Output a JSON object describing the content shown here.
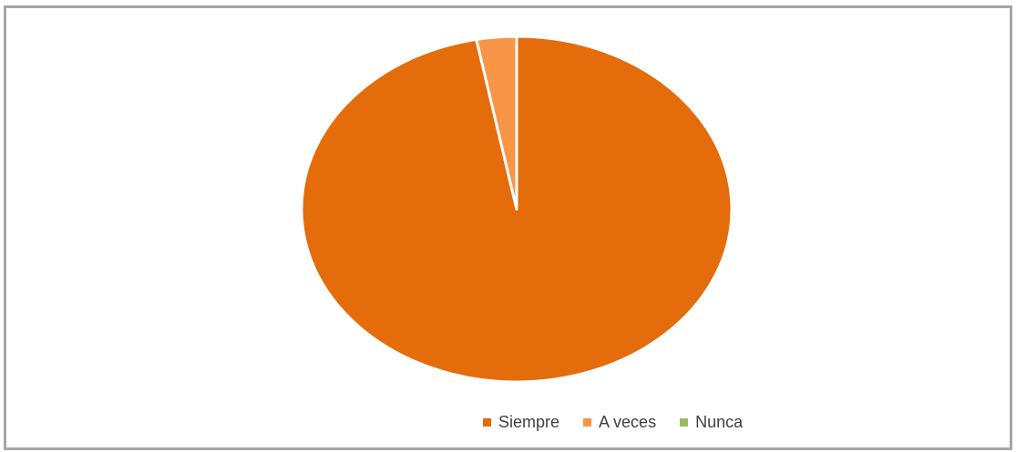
{
  "chart_data": {
    "type": "pie",
    "categories": [
      "Siempre",
      "A veces",
      "Nunca"
    ],
    "values": [
      97,
      3,
      0
    ],
    "colors": [
      "#E46C0A",
      "#F79646",
      "#9BBB59"
    ],
    "legend_position": "bottom",
    "title": ""
  },
  "legend": {
    "items": [
      {
        "label": "Siempre",
        "color": "#E46C0A"
      },
      {
        "label": "A veces",
        "color": "#F79646"
      },
      {
        "label": "Nunca",
        "color": "#9BBB59"
      }
    ]
  }
}
